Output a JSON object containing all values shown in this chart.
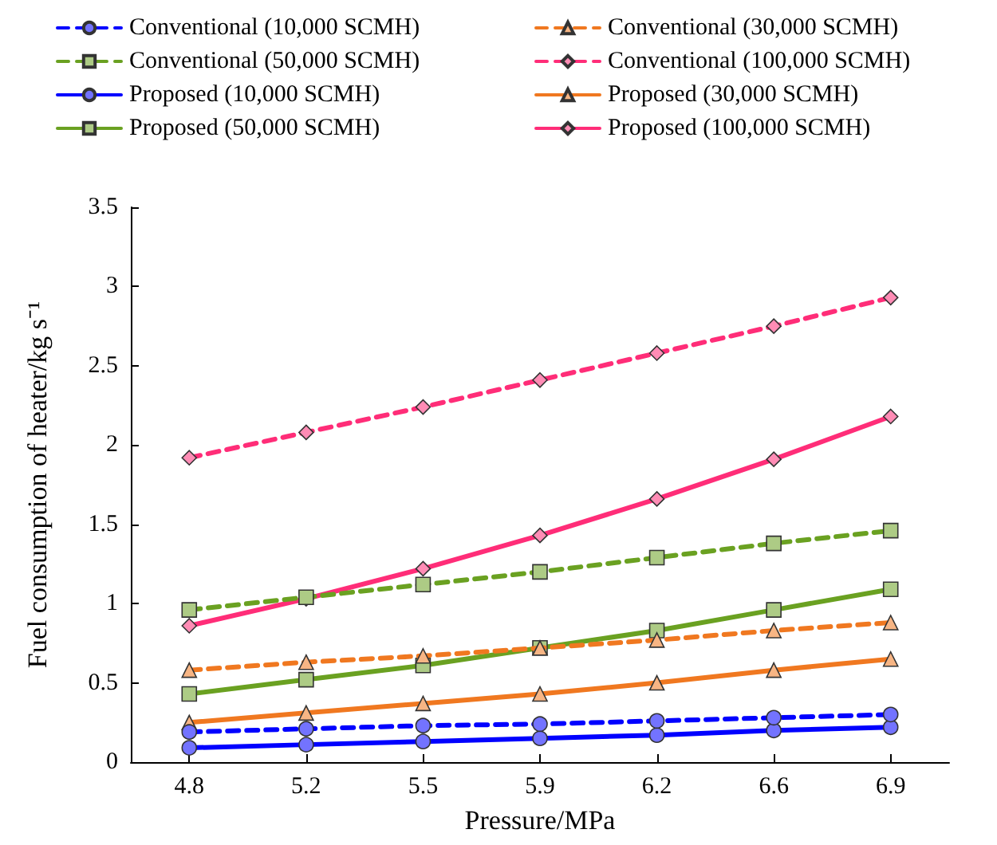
{
  "chart_data": {
    "type": "line",
    "xlabel": "Pressure/MPa",
    "ylabel": "Fuel consumption of heater/kg s⁻¹",
    "categories": [
      "4.8",
      "5.2",
      "5.5",
      "5.9",
      "6.2",
      "6.6",
      "6.9"
    ],
    "ylim": [
      0,
      3.5
    ],
    "yticks": [
      0,
      0.5,
      1,
      1.5,
      2,
      2.5,
      3,
      3.5
    ],
    "grid": false,
    "legend": "top",
    "series": [
      {
        "name": "Conventional (10,000 SCMH)",
        "color": "#0000ff",
        "line_style": "dashed",
        "marker": "circle",
        "values": [
          0.19,
          0.21,
          0.23,
          0.24,
          0.26,
          0.28,
          0.3
        ]
      },
      {
        "name": "Conventional (30,000 SCMH)",
        "color": "#f07820",
        "line_style": "dashed",
        "marker": "triangle",
        "values": [
          0.58,
          0.63,
          0.67,
          0.72,
          0.77,
          0.83,
          0.88
        ]
      },
      {
        "name": "Conventional (50,000 SCMH)",
        "color": "#6aa121",
        "line_style": "dashed",
        "marker": "square",
        "values": [
          0.96,
          1.04,
          1.12,
          1.2,
          1.29,
          1.38,
          1.46
        ]
      },
      {
        "name": "Conventional (100,000 SCMH)",
        "color": "#ff2d78",
        "line_style": "dashed",
        "marker": "diamond",
        "values": [
          1.92,
          2.08,
          2.24,
          2.41,
          2.58,
          2.75,
          2.93
        ]
      },
      {
        "name": "Proposed (10,000 SCMH)",
        "color": "#0000ff",
        "line_style": "solid",
        "marker": "circle",
        "values": [
          0.09,
          0.11,
          0.13,
          0.15,
          0.17,
          0.2,
          0.22
        ]
      },
      {
        "name": "Proposed (30,000 SCMH)",
        "color": "#f07820",
        "line_style": "solid",
        "marker": "triangle",
        "values": [
          0.25,
          0.31,
          0.37,
          0.43,
          0.5,
          0.58,
          0.65
        ]
      },
      {
        "name": "Proposed (50,000 SCMH)",
        "color": "#6aa121",
        "line_style": "solid",
        "marker": "square",
        "values": [
          0.43,
          0.52,
          0.61,
          0.72,
          0.83,
          0.96,
          1.09
        ]
      },
      {
        "name": "Proposed (100,000 SCMH)",
        "color": "#ff2d78",
        "line_style": "solid",
        "marker": "diamond",
        "values": [
          0.86,
          1.03,
          1.22,
          1.43,
          1.66,
          1.91,
          2.18
        ]
      }
    ]
  }
}
